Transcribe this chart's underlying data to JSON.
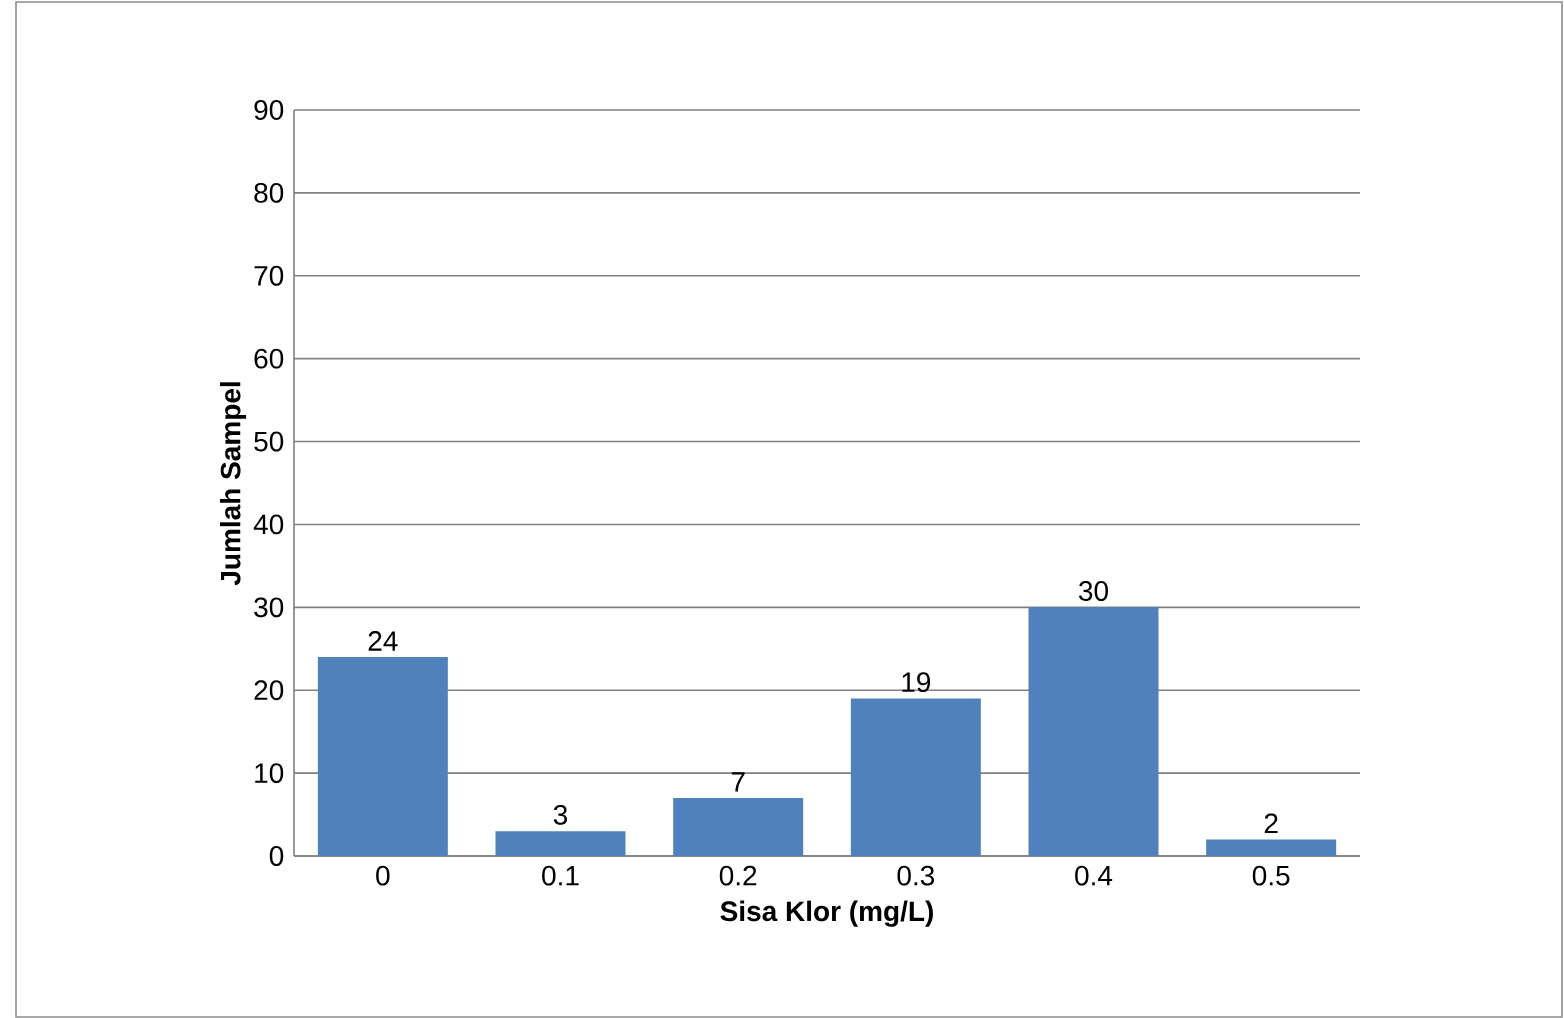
{
  "chart_data": {
    "type": "bar",
    "xlabel": "Sisa Klor (mg/L)",
    "ylabel": "Jumlah Sampel",
    "categories": [
      "0",
      "0.1",
      "0.2",
      "0.3",
      "0.4",
      "0.5"
    ],
    "values": [
      24,
      3,
      7,
      19,
      30,
      2
    ],
    "color": "#4f81bd",
    "ylim": [
      0,
      90
    ],
    "yticks": [
      0,
      10,
      20,
      30,
      40,
      50,
      60,
      70,
      80,
      90
    ],
    "grid": "y",
    "data_labels": true
  }
}
